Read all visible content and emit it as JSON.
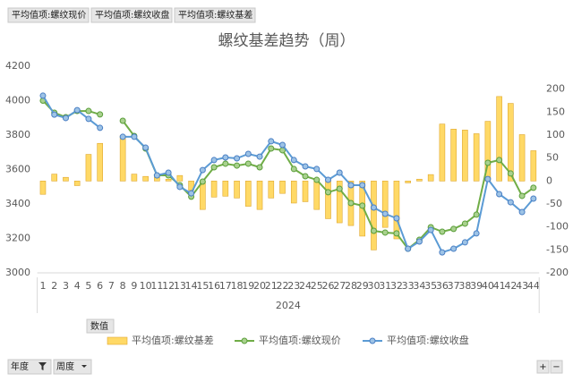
{
  "field_buttons": [
    "平均值项:螺纹现价",
    "平均值项:螺纹收盘",
    "平均值项:螺纹基差"
  ],
  "value_button": "数值",
  "filter_buttons": [
    "年度",
    "周度"
  ],
  "zoom_buttons": [
    "+",
    "−"
  ],
  "chart_data": {
    "type": "combo",
    "title": "螺纹基差趋势（周）",
    "x_group_label": "2024",
    "categories": [
      "1",
      "2",
      "3",
      "4",
      "5",
      "6",
      "7",
      "8",
      "9",
      "10",
      "11",
      "12",
      "13",
      "14",
      "15",
      "16",
      "17",
      "18",
      "19",
      "20",
      "21",
      "22",
      "23",
      "24",
      "25",
      "26",
      "27",
      "28",
      "29",
      "30",
      "31",
      "32",
      "33",
      "34",
      "35",
      "36",
      "37",
      "38",
      "39",
      "40",
      "41",
      "42",
      "43",
      "44"
    ],
    "ylim": [
      3000,
      4200
    ],
    "yticks": [
      3000,
      3200,
      3400,
      3600,
      3800,
      4000,
      4200
    ],
    "y2lim": [
      -200,
      250
    ],
    "y2ticks": [
      -200,
      -150,
      -100,
      -50,
      0,
      50,
      100,
      150,
      200
    ],
    "grid": false,
    "series": [
      {
        "name": "平均值项:螺纹基差",
        "type": "bar",
        "axis": "y2",
        "color": "#ffd966",
        "values": [
          -29,
          15,
          8,
          -10,
          58,
          82,
          null,
          99,
          15,
          10,
          8,
          4,
          12,
          -20,
          -62,
          -35,
          -33,
          -37,
          -55,
          -62,
          -37,
          -27,
          -48,
          -45,
          -62,
          -82,
          -91,
          -97,
          -120,
          -150,
          -101,
          -126,
          -4,
          4,
          14,
          124,
          113,
          111,
          103,
          130,
          184,
          169,
          101,
          66
        ]
      },
      {
        "name": "平均值项:螺纹现价",
        "type": "line",
        "color": "#70ad47",
        "values": [
          4000,
          3930,
          3904,
          3940,
          3940,
          3920,
          null,
          3883,
          3795,
          3722,
          3566,
          3566,
          3509,
          3442,
          3530,
          3613,
          3634,
          3623,
          3634,
          3613,
          3722,
          3712,
          3603,
          3561,
          3540,
          3468,
          3488,
          3405,
          3390,
          3244,
          3234,
          3229,
          3140,
          3192,
          3265,
          3239,
          3255,
          3286,
          3338,
          3639,
          3655,
          3577,
          3447,
          3494
        ]
      },
      {
        "name": "平均值项:螺纹收盘",
        "type": "line",
        "color": "#5b9bd5",
        "values": [
          4029,
          3919,
          3899,
          3945,
          3894,
          3842,
          null,
          3790,
          3790,
          3727,
          3566,
          3582,
          3499,
          3462,
          3597,
          3655,
          3670,
          3665,
          3691,
          3675,
          3764,
          3743,
          3655,
          3618,
          3603,
          3540,
          3582,
          3509,
          3509,
          3379,
          3343,
          3317,
          3140,
          3182,
          3249,
          3119,
          3140,
          3177,
          3229,
          3545,
          3457,
          3410,
          3353,
          3431
        ]
      }
    ]
  }
}
